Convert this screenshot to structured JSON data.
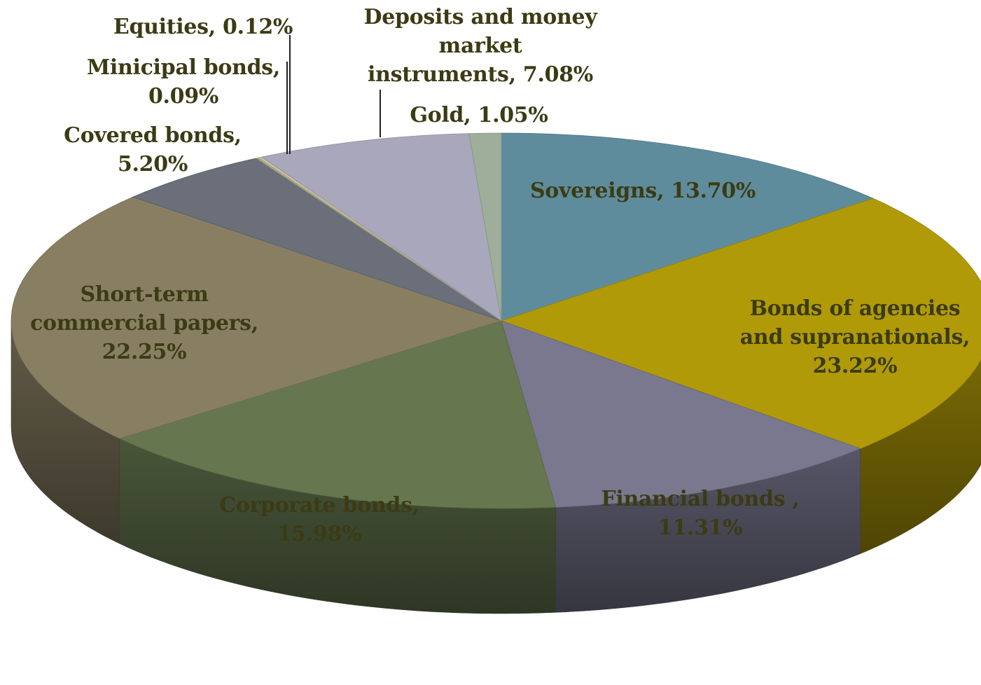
{
  "chart_data": {
    "type": "pie",
    "style": "3d-tilted",
    "slices": [
      {
        "name": "Sovereigns",
        "value": 13.7,
        "label_lines": [
          "Sovereigns, 13.70%"
        ],
        "color": "#5f8c9c"
      },
      {
        "name": "Bonds of agencies and supranationals",
        "value": 23.22,
        "label_lines": [
          "Bonds of agencies",
          "and supranationals,",
          "23.22%"
        ],
        "color": "#b09a08"
      },
      {
        "name": "Financial bonds",
        "value": 11.31,
        "label_lines": [
          "Financial bonds ,",
          "11.31%"
        ],
        "color": "#79788f"
      },
      {
        "name": "Corporate bonds",
        "value": 15.98,
        "label_lines": [
          "Corporate bonds,",
          "15.98%"
        ],
        "color": "#66774f"
      },
      {
        "name": "Short-term commercial papers",
        "value": 22.25,
        "label_lines": [
          "Short-term",
          "commercial papers,",
          "22.25%"
        ],
        "color": "#887f62"
      },
      {
        "name": "Covered bonds",
        "value": 5.2,
        "label_lines": [
          "Covered bonds,",
          "5.20%"
        ],
        "color": "#6a6f7a"
      },
      {
        "name": "Minicipal bonds",
        "value": 0.09,
        "label_lines": [
          "Minicipal bonds,",
          "0.09%"
        ],
        "color": "#a9a58c"
      },
      {
        "name": "Equities",
        "value": 0.12,
        "label_lines": [
          "Equities, 0.12%"
        ],
        "color": "#c8c49a"
      },
      {
        "name": "Deposits and money market instruments",
        "value": 7.08,
        "label_lines": [
          "Deposits and money",
          "market",
          "instruments, 7.08%"
        ],
        "color": "#a9a7bb"
      },
      {
        "name": "Gold",
        "value": 1.05,
        "label_lines": [
          "Gold, 1.05%"
        ],
        "color": "#9fae9a"
      }
    ]
  }
}
